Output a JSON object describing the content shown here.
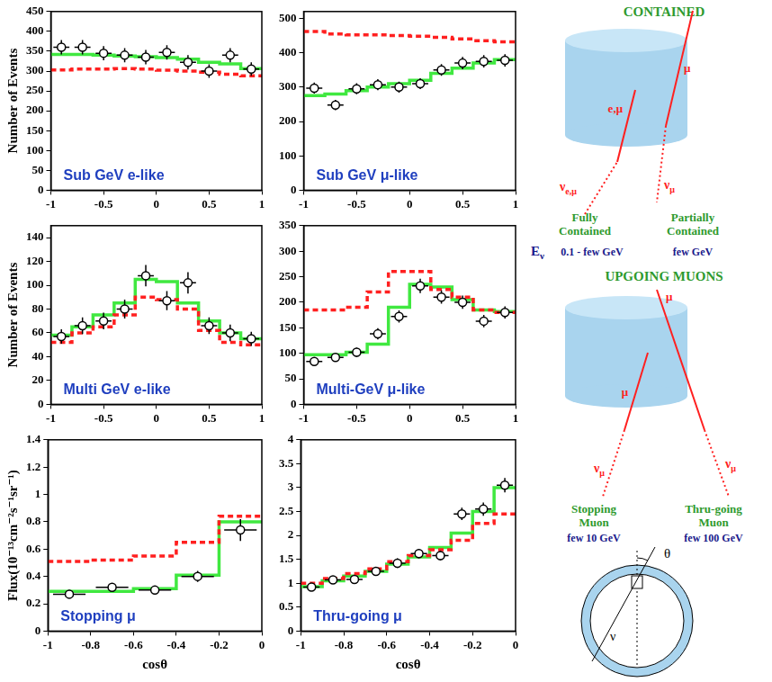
{
  "chart_data": [
    {
      "type": "histogram",
      "title": "Sub GeV e-like",
      "y_label": "Number of Events",
      "bins": [
        -1,
        -0.8,
        -0.6,
        -0.4,
        -0.2,
        0,
        0.2,
        0.4,
        0.6,
        0.8,
        1
      ],
      "xlim": [
        -1,
        1
      ],
      "xticks": [
        -1,
        -0.5,
        0,
        0.5,
        1
      ],
      "ylim": [
        0,
        450
      ],
      "yticks": [
        0,
        50,
        100,
        150,
        200,
        250,
        300,
        350,
        400,
        450
      ],
      "grid": false,
      "series": [
        {
          "type": "step",
          "color": "#ff2020",
          "line_style": "dashed",
          "values": [
            303,
            305,
            305,
            306,
            305,
            302,
            300,
            297,
            292,
            288
          ]
        },
        {
          "type": "step",
          "color": "#40e840",
          "line_style": "solid",
          "values": [
            342,
            342,
            340,
            338,
            336,
            334,
            330,
            322,
            318,
            306
          ]
        },
        {
          "type": "scatter",
          "marker": "circle",
          "color": "#000000",
          "values": [
            360,
            360,
            345,
            340,
            335,
            347,
            322,
            300,
            340,
            305
          ],
          "errors": [
            18,
            18,
            18,
            18,
            18,
            18,
            18,
            17,
            18,
            17
          ]
        }
      ]
    },
    {
      "type": "histogram",
      "title": "Sub GeV μ-like",
      "bins": [
        -1,
        -0.8,
        -0.6,
        -0.4,
        -0.2,
        0,
        0.2,
        0.4,
        0.6,
        0.8,
        1
      ],
      "xlim": [
        -1,
        1
      ],
      "xticks": [
        -1,
        -0.5,
        0,
        0.5,
        1
      ],
      "ylim": [
        0,
        520
      ],
      "yticks": [
        0,
        100,
        200,
        300,
        400,
        500
      ],
      "grid": false,
      "series": [
        {
          "type": "step",
          "color": "#ff2020",
          "line_style": "dashed",
          "values": [
            462,
            455,
            452,
            452,
            450,
            448,
            445,
            440,
            435,
            432
          ]
        },
        {
          "type": "step",
          "color": "#40e840",
          "line_style": "solid",
          "values": [
            275,
            280,
            290,
            300,
            310,
            320,
            340,
            355,
            370,
            380
          ]
        },
        {
          "type": "scatter",
          "marker": "circle",
          "color": "#000000",
          "values": [
            297,
            248,
            295,
            307,
            300,
            310,
            350,
            370,
            375,
            378
          ],
          "errors": [
            16,
            15,
            16,
            16,
            16,
            16,
            17,
            18,
            18,
            18
          ]
        }
      ]
    },
    {
      "type": "histogram",
      "title": "Multi GeV e-like",
      "y_label": "Number of Events",
      "bins": [
        -1,
        -0.8,
        -0.6,
        -0.4,
        -0.2,
        0,
        0.2,
        0.4,
        0.6,
        0.8,
        1
      ],
      "xlim": [
        -1,
        1
      ],
      "xticks": [
        -1,
        -0.5,
        0,
        0.5,
        1
      ],
      "ylim": [
        0,
        150
      ],
      "yticks": [
        0,
        20,
        40,
        60,
        80,
        100,
        120,
        140
      ],
      "grid": false,
      "series": [
        {
          "type": "step",
          "color": "#ff2020",
          "line_style": "dashed",
          "values": [
            52,
            60,
            65,
            75,
            90,
            88,
            80,
            62,
            52,
            50
          ]
        },
        {
          "type": "step",
          "color": "#40e840",
          "line_style": "solid",
          "values": [
            58,
            65,
            75,
            85,
            105,
            103,
            85,
            70,
            60,
            55
          ]
        },
        {
          "type": "scatter",
          "marker": "circle",
          "color": "#000000",
          "values": [
            57,
            66,
            70,
            80,
            108,
            87,
            102,
            66,
            60,
            55
          ],
          "errors": [
            6,
            7,
            7,
            8,
            9,
            8,
            9,
            7,
            7,
            6
          ]
        }
      ]
    },
    {
      "type": "histogram",
      "title": "Multi-GeV μ-like",
      "bins": [
        -1,
        -0.8,
        -0.6,
        -0.4,
        -0.2,
        0,
        0.2,
        0.4,
        0.6,
        0.8,
        1
      ],
      "xlim": [
        -1,
        1
      ],
      "xticks": [
        -1,
        -0.5,
        0,
        0.5,
        1
      ],
      "ylim": [
        0,
        350
      ],
      "yticks": [
        0,
        50,
        100,
        150,
        200,
        250,
        300,
        350
      ],
      "grid": false,
      "series": [
        {
          "type": "step",
          "color": "#ff2020",
          "line_style": "dashed",
          "values": [
            185,
            185,
            190,
            220,
            260,
            260,
            225,
            210,
            185,
            180
          ]
        },
        {
          "type": "step",
          "color": "#40e840",
          "line_style": "solid",
          "values": [
            97,
            97,
            102,
            118,
            190,
            235,
            230,
            205,
            185,
            182
          ]
        },
        {
          "type": "scatter",
          "marker": "circle",
          "color": "#000000",
          "values": [
            84,
            92,
            102,
            138,
            172,
            232,
            210,
            200,
            163,
            180
          ],
          "errors": [
            8,
            8,
            9,
            11,
            12,
            14,
            13,
            13,
            12,
            12
          ]
        }
      ]
    },
    {
      "type": "histogram",
      "title": "Stopping μ",
      "x_label": "cosθ",
      "y_label": "Flux(10⁻¹³cm⁻²s⁻¹sr⁻¹)",
      "bins": [
        -1,
        -0.8,
        -0.6,
        -0.4,
        -0.2,
        0
      ],
      "xlim": [
        -1,
        0
      ],
      "xticks": [
        -1,
        -0.8,
        -0.6,
        -0.4,
        -0.2,
        0
      ],
      "ylim": [
        0,
        1.4
      ],
      "yticks": [
        0,
        0.2,
        0.4,
        0.6,
        0.8,
        1,
        1.2,
        1.4
      ],
      "grid": false,
      "series": [
        {
          "type": "step",
          "color": "#ff2020",
          "line_style": "dashed",
          "values": [
            0.51,
            0.52,
            0.55,
            0.65,
            0.84
          ]
        },
        {
          "type": "step",
          "color": "#40e840",
          "line_style": "solid",
          "values": [
            0.29,
            0.29,
            0.31,
            0.41,
            0.8
          ]
        },
        {
          "type": "scatter",
          "marker": "circle",
          "color": "#000000",
          "values": [
            0.27,
            0.32,
            0.3,
            0.4,
            0.74
          ],
          "errors": [
            0.03,
            0.03,
            0.03,
            0.04,
            0.08
          ]
        }
      ]
    },
    {
      "type": "histogram",
      "title": "Thru-going μ",
      "x_label": "cosθ",
      "bins": [
        -1,
        -0.9,
        -0.8,
        -0.7,
        -0.6,
        -0.5,
        -0.4,
        -0.3,
        -0.2,
        -0.1,
        0
      ],
      "xlim": [
        -1,
        0
      ],
      "xticks": [
        -1,
        -0.8,
        -0.6,
        -0.4,
        -0.2,
        0
      ],
      "ylim": [
        0,
        4
      ],
      "yticks": [
        0,
        0.5,
        1,
        1.5,
        2,
        2.5,
        3,
        3.5,
        4
      ],
      "grid": false,
      "series": [
        {
          "type": "step",
          "color": "#ff2020",
          "line_style": "dashed",
          "values": [
            1.0,
            1.1,
            1.2,
            1.3,
            1.45,
            1.58,
            1.7,
            1.9,
            2.25,
            2.45
          ]
        },
        {
          "type": "step",
          "color": "#40e840",
          "line_style": "solid",
          "values": [
            0.93,
            1.05,
            1.15,
            1.25,
            1.4,
            1.55,
            1.75,
            2.05,
            2.5,
            3.0
          ]
        },
        {
          "type": "scatter",
          "marker": "circle",
          "color": "#000000",
          "values": [
            0.92,
            1.07,
            1.08,
            1.25,
            1.42,
            1.62,
            1.58,
            2.45,
            2.55,
            3.05
          ],
          "errors": [
            0.08,
            0.08,
            0.08,
            0.09,
            0.1,
            0.1,
            0.1,
            0.13,
            0.14,
            0.15
          ]
        }
      ]
    }
  ],
  "diagram": {
    "contained": {
      "title": "CONTAINED",
      "track_labels": [
        "e,μ",
        "μ"
      ],
      "neutrinos": [
        {
          "text": "ν",
          "sub": "e,μ"
        },
        {
          "text": "ν",
          "sub": "μ"
        }
      ],
      "types": [
        "Fully Contained",
        "Partially Contained"
      ]
    },
    "energy": {
      "symbol": {
        "text": "E",
        "sub": "ν"
      },
      "ranges": [
        "0.1 - few GeV",
        "few GeV"
      ]
    },
    "upgoing": {
      "title": "UPGOING MUONS",
      "track_labels": [
        "μ",
        "μ"
      ],
      "neutrinos": [
        {
          "text": "ν",
          "sub": "μ"
        },
        {
          "text": "ν",
          "sub": "μ"
        }
      ],
      "types": [
        "Stopping Muon",
        "Thru-going Muon"
      ],
      "energies": [
        "few 10 GeV",
        "few 100 GeV"
      ]
    },
    "earth": {
      "angle": "θ",
      "neutrino": "ν"
    }
  }
}
